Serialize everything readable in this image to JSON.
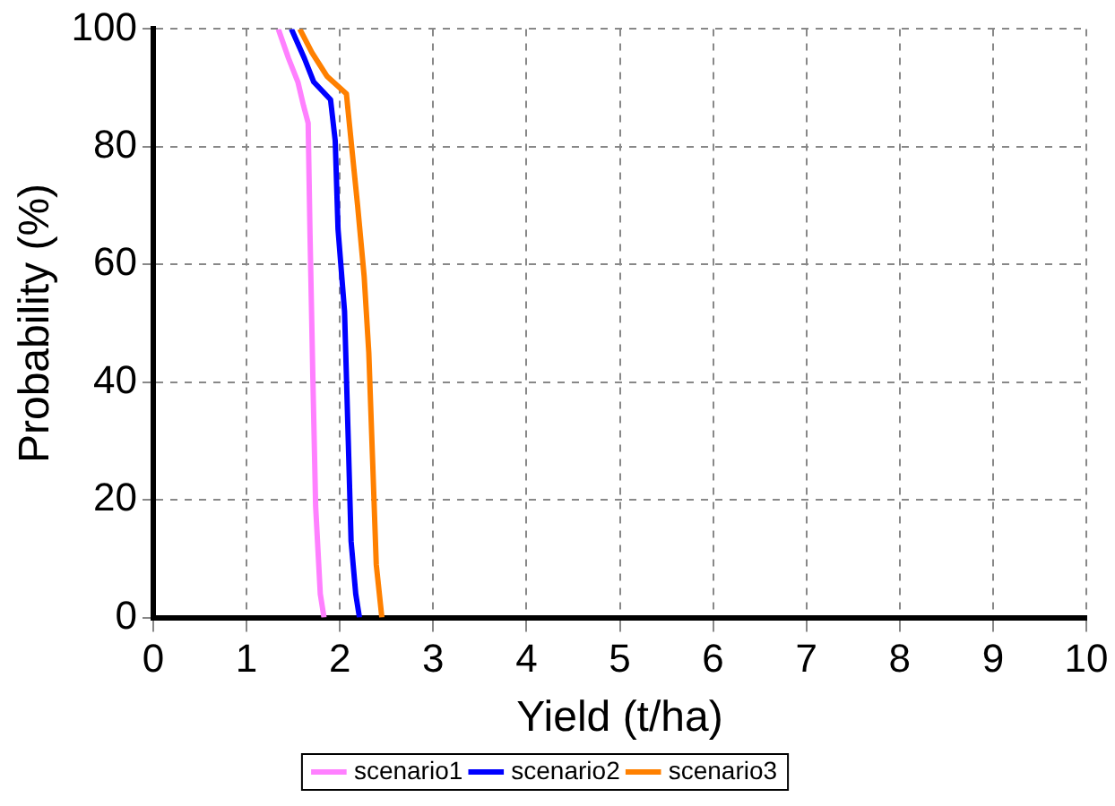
{
  "chart_data": {
    "type": "line",
    "xlabel": "Yield (t/ha)",
    "ylabel": "Probability (%)",
    "xlim": [
      0,
      10
    ],
    "xticks": [
      0,
      1,
      2,
      3,
      4,
      5,
      6,
      7,
      8,
      9,
      10
    ],
    "ylim": [
      0,
      100
    ],
    "yticks": [
      0,
      20,
      40,
      60,
      80,
      100
    ],
    "grid": true,
    "legend": "bottom",
    "marker": "none",
    "line_style": "solid",
    "series": [
      {
        "name": "scenario1",
        "color": "#ff80ff",
        "x": [
          1.34,
          1.45,
          1.55,
          1.61,
          1.66,
          1.68,
          1.71,
          1.74,
          1.79,
          1.83
        ],
        "values": [
          100,
          95,
          91,
          87,
          84,
          65,
          41,
          19,
          4,
          0
        ]
      },
      {
        "name": "scenario2",
        "color": "#0000ff",
        "x": [
          1.48,
          1.62,
          1.72,
          1.9,
          1.95,
          1.98,
          2.05,
          2.09,
          2.12,
          2.17,
          2.21
        ],
        "values": [
          100,
          95,
          91,
          88,
          81,
          66,
          52,
          30,
          13,
          4,
          0
        ]
      },
      {
        "name": "scenario3",
        "color": "#ff8000",
        "x": [
          1.57,
          1.7,
          1.86,
          2.07,
          2.12,
          2.19,
          2.26,
          2.31,
          2.35,
          2.39,
          2.45
        ],
        "values": [
          100,
          96,
          92,
          89,
          81,
          70,
          58,
          45,
          27,
          9,
          0
        ]
      }
    ]
  }
}
